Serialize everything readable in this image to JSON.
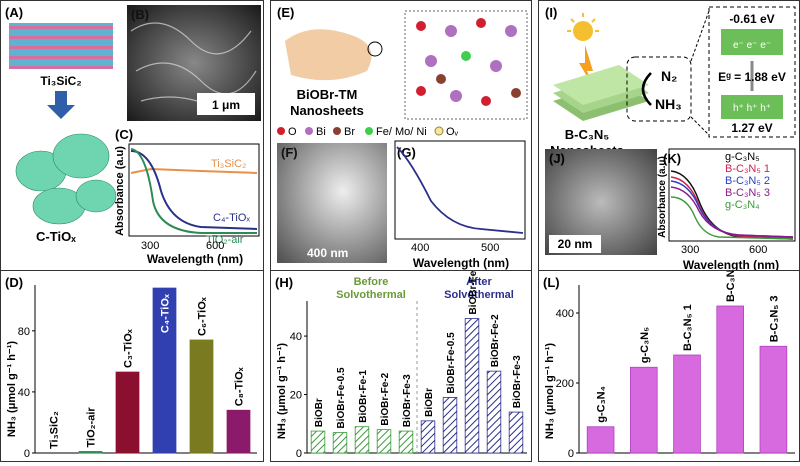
{
  "panels": {
    "A": {
      "label": "(A)",
      "material": "Ti₃SiC₂",
      "product": "C-TiOₓ"
    },
    "B": {
      "label": "(B)",
      "scale": "1 μm"
    },
    "C": {
      "label": "(C)",
      "ylabel": "Absorbance (a.u)",
      "xlabel": "Wavelength (nm)",
      "ticks": [
        "300",
        "600"
      ],
      "legend": {
        "ti3sic2": "Ti₃SiC₂",
        "c4": "C₄-TiOₓ",
        "tio2air": "TiO₂-air"
      }
    },
    "D": {
      "label": "(D)",
      "ylabel": "NH₃ (μmol g⁻¹ h⁻¹)",
      "yticks": [
        "0",
        "40",
        "80"
      ]
    },
    "E": {
      "label": "(E)",
      "title_line1": "BiOBr-TM",
      "title_line2": "Nanosheets",
      "legend": {
        "o": "O",
        "bi": "Bi",
        "br": "Br",
        "metal": "Fe/ Mo/ Ni",
        "ov": "Oᵥ"
      }
    },
    "F": {
      "label": "(F)",
      "scale": "400 nm"
    },
    "G": {
      "label": "(G)",
      "xlabel": "Wavelength (nm)",
      "ticks": [
        "400",
        "500"
      ]
    },
    "H": {
      "label": "(H)",
      "ylabel": "NH₃ (μmol g⁻¹ h⁻¹)",
      "yticks": [
        "0",
        "20",
        "40"
      ],
      "before": "Before\nSolvothermal",
      "after": "After\nSolvothermal"
    },
    "I": {
      "label": "(I)",
      "cb": "-0.61 eV",
      "eg": "Eᵍ = 1.88 eV",
      "vb": "1.27 eV",
      "n2": "N₂",
      "nh3": "NH₃",
      "name_line1": "B-C₃N₅",
      "name_line2": "Nanosheets"
    },
    "J": {
      "label": "(J)",
      "scale": "20 nm"
    },
    "K": {
      "label": "(K)",
      "ylabel": "Absorbance (a.u)",
      "xlabel": "Wavelength (nm)",
      "ticks": [
        "300",
        "600"
      ],
      "legend": [
        "g-C₃N₅",
        "B-C₃N₅ 1",
        "B-C₃N₅ 2",
        "B-C₃N₅ 3",
        "g-C₃N₄"
      ]
    },
    "L": {
      "label": "(L)",
      "ylabel": "NH₃ (μmol g⁻¹ h⁻¹)",
      "yticks": [
        "0",
        "200",
        "400"
      ]
    }
  },
  "chart_data": [
    {
      "type": "bar",
      "panel": "D",
      "ylabel": "NH₃ (μmol g⁻¹ h⁻¹)",
      "ylim": [
        0,
        110
      ],
      "categories": [
        "Ti₃SiC₂",
        "TiO₂-air",
        "C₃-TiOₓ",
        "C₄-TiOₓ",
        "C₆-TiOₓ",
        "C₈-TiOₓ"
      ],
      "values": [
        0,
        1,
        53,
        108,
        74,
        28
      ],
      "colors": [
        "#888888",
        "#2e8b57",
        "#8b1030",
        "#3040b0",
        "#7a7a20",
        "#8b1a6b"
      ]
    },
    {
      "type": "bar",
      "panel": "H",
      "ylabel": "NH₃ (μmol g⁻¹ h⁻¹)",
      "ylim": [
        0,
        52
      ],
      "categories": [
        "BiOBr",
        "BiOBr-Fe-0.5",
        "BiOBr-Fe-1",
        "BiOBr-Fe-2",
        "BiOBr-Fe-3",
        "BiOBr",
        "BiOBr-Fe-0.5",
        "BiOBr-Fe-1",
        "BiOBr-Fe-2",
        "BiOBr-Fe-3"
      ],
      "values": [
        7.5,
        7,
        9,
        8,
        7.5,
        11,
        19,
        46,
        28,
        14
      ],
      "groups": [
        "Before Solvothermal",
        "Before Solvothermal",
        "Before Solvothermal",
        "Before Solvothermal",
        "Before Solvothermal",
        "After Solvothermal",
        "After Solvothermal",
        "After Solvothermal",
        "After Solvothermal",
        "After Solvothermal"
      ]
    },
    {
      "type": "bar",
      "panel": "L",
      "ylabel": "NH₃ (μmol g⁻¹ h⁻¹)",
      "ylim": [
        0,
        480
      ],
      "categories": [
        "g-C₃N₄",
        "g-C₃N₅",
        "B-C₃N₅ 1",
        "B-C₃N₅ 2",
        "B-C₃N₅ 3"
      ],
      "values": [
        75,
        245,
        280,
        420,
        305
      ]
    }
  ]
}
